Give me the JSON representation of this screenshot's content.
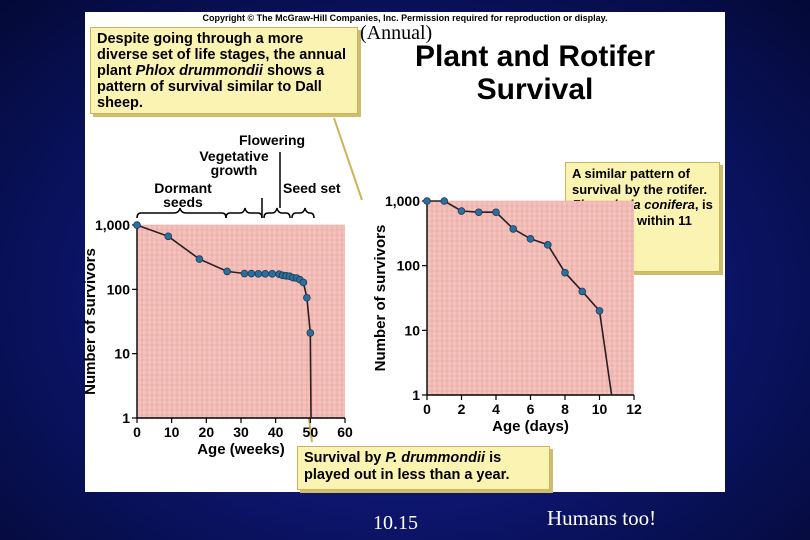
{
  "slide": {
    "copyright": "Copyright © The McGraw-Hill Companies, Inc. Permission required for reproduction or display.",
    "annual_note": "(Annual)",
    "title_line1": "Plant and Rotifer",
    "title_line2": "Survival",
    "callout_phlox_pre": "Despite going through a more diverse set of life stages, the annual plant ",
    "callout_phlox_species": "Phlox drummondii",
    "callout_phlox_post": " shows a pattern of survival similar to Dall sheep.",
    "callout_rotifer_pre": "A similar pattern of survival by the rotifer. ",
    "callout_rotifer_species": "Floscularia conifera",
    "callout_rotifer_post": ", is com-plete within 11 days.",
    "callout_pd_pre": "Survival by ",
    "callout_pd_species": "P. drummondii",
    "callout_pd_post": " is played out in less than a year.",
    "stages": {
      "dormant": "Dormant seeds",
      "vegetative": "Vegetative growth",
      "flowering": "Flowering",
      "seed_set": "Seed set"
    },
    "page_number": "10.15",
    "footer_note": "Humans too!"
  },
  "colors": {
    "plot_fill": "#f4c2bd",
    "grid": "#e7a19b",
    "line": "#2a1d25",
    "marker": "#2a6f9e",
    "callout_fill": "#fbf3b2"
  },
  "chart_data": [
    {
      "type": "line",
      "xlabel": "Age (weeks)",
      "ylabel": "Number of survivors",
      "xlim": [
        0,
        60
      ],
      "ylim": [
        1,
        1000
      ],
      "y_scale": "log",
      "x_ticks": [
        "0",
        "10",
        "20",
        "30",
        "40",
        "50",
        "60"
      ],
      "y_ticks": [
        "1",
        "10",
        "100",
        "1,000"
      ],
      "series": [
        {
          "x": [
            0,
            9,
            18,
            26,
            31,
            33,
            35,
            37,
            39,
            41,
            42,
            43,
            44,
            45,
            46,
            47,
            48,
            49,
            50,
            50.2
          ],
          "y": [
            996,
            668,
            295,
            190,
            176,
            176,
            174,
            174,
            174,
            172,
            165,
            162,
            160,
            152,
            150,
            141,
            128,
            74,
            21,
            1
          ],
          "markers": [
            true,
            true,
            true,
            true,
            true,
            true,
            true,
            true,
            true,
            true,
            true,
            true,
            true,
            true,
            true,
            true,
            true,
            true,
            true,
            false
          ]
        }
      ]
    },
    {
      "type": "line",
      "xlabel": "Age (days)",
      "ylabel": "Number of survivors",
      "xlim": [
        0,
        12
      ],
      "ylim": [
        1,
        1000
      ],
      "y_scale": "log",
      "x_ticks": [
        "0",
        "2",
        "4",
        "6",
        "8",
        "10",
        "12"
      ],
      "y_ticks": [
        "1",
        "10",
        "100",
        "1,000"
      ],
      "series": [
        {
          "x": [
            0,
            1,
            2,
            3,
            4,
            5,
            6,
            7,
            8,
            9,
            10,
            10.7
          ],
          "y": [
            1000,
            1000,
            700,
            670,
            670,
            370,
            260,
            210,
            78,
            40,
            20,
            1
          ],
          "markers": [
            true,
            true,
            true,
            true,
            true,
            true,
            true,
            true,
            true,
            true,
            true,
            false
          ]
        }
      ]
    }
  ]
}
